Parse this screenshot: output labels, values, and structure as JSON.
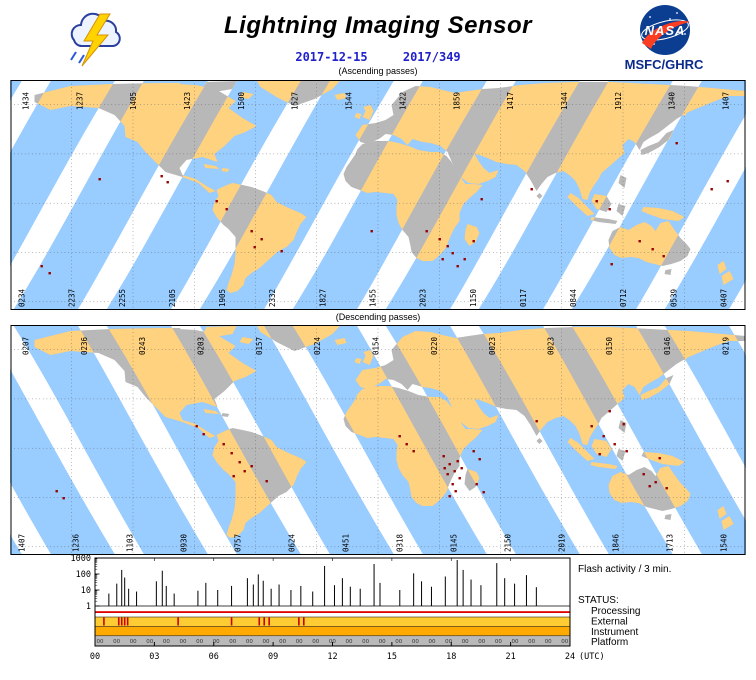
{
  "header": {
    "title": "Lightning Imaging Sensor",
    "date": "2017-12-15",
    "day_of_year": "2017/349",
    "org": "MSFC/GHRC",
    "nasa_wordmark": "NASA"
  },
  "colors": {
    "swath_sea": "#99ccff",
    "swath_land": "#ffd280",
    "land": "#b8b8b8",
    "flash": "#990000",
    "accent_blue": "#2020cc",
    "status_processing": "#dd0000",
    "status_external": "#ffcc33",
    "status_instrument": "#ffaa00",
    "status_platform": "#b9b9b9"
  },
  "maps": {
    "ascending": {
      "label": "(Ascending passes)",
      "top_times": [
        "1434",
        "1237",
        "1405",
        "1423",
        "1500",
        "1527",
        "1544",
        "1422",
        "1859",
        "1417",
        "1344",
        "1912",
        "1340",
        "1407"
      ],
      "bottom_times": [
        "0234",
        "2237",
        "2255",
        "2105",
        "1905",
        "2332",
        "1827",
        "1455",
        "2023",
        "1150",
        "0117",
        "0844",
        "0712",
        "0539",
        "0407"
      ],
      "flash_points": [
        [
          30,
          185
        ],
        [
          38,
          192
        ],
        [
          88,
          98
        ],
        [
          150,
          95
        ],
        [
          156,
          101
        ],
        [
          205,
          120
        ],
        [
          215,
          128
        ],
        [
          240,
          150
        ],
        [
          250,
          158
        ],
        [
          243,
          166
        ],
        [
          270,
          170
        ],
        [
          360,
          150
        ],
        [
          415,
          150
        ],
        [
          428,
          158
        ],
        [
          436,
          165
        ],
        [
          441,
          172
        ],
        [
          431,
          178
        ],
        [
          446,
          185
        ],
        [
          453,
          178
        ],
        [
          462,
          160
        ],
        [
          470,
          118
        ],
        [
          520,
          108
        ],
        [
          585,
          120
        ],
        [
          598,
          128
        ],
        [
          628,
          160
        ],
        [
          641,
          168
        ],
        [
          652,
          175
        ],
        [
          665,
          62
        ],
        [
          700,
          108
        ],
        [
          716,
          100
        ],
        [
          600,
          183
        ]
      ]
    },
    "descending": {
      "label": "(Descending passes)",
      "top_times": [
        "0207",
        "0236",
        "0243",
        "0203",
        "0157",
        "0224",
        "0154",
        "0220",
        "0023",
        "0023",
        "0150",
        "0146",
        "0219"
      ],
      "bottom_times": [
        "1407",
        "1236",
        "1103",
        "0930",
        "0757",
        "0624",
        "0451",
        "0318",
        "0145",
        "2150",
        "2019",
        "1846",
        "1713",
        "1540"
      ],
      "flash_points": [
        [
          45,
          165
        ],
        [
          52,
          172
        ],
        [
          185,
          100
        ],
        [
          192,
          108
        ],
        [
          212,
          118
        ],
        [
          220,
          127
        ],
        [
          228,
          136
        ],
        [
          233,
          145
        ],
        [
          222,
          150
        ],
        [
          240,
          140
        ],
        [
          255,
          155
        ],
        [
          388,
          110
        ],
        [
          395,
          118
        ],
        [
          402,
          125
        ],
        [
          432,
          130
        ],
        [
          438,
          138
        ],
        [
          443,
          145
        ],
        [
          448,
          152
        ],
        [
          436,
          148
        ],
        [
          441,
          158
        ],
        [
          446,
          135
        ],
        [
          433,
          142
        ],
        [
          450,
          142
        ],
        [
          444,
          165
        ],
        [
          438,
          170
        ],
        [
          462,
          125
        ],
        [
          468,
          133
        ],
        [
          465,
          158
        ],
        [
          472,
          166
        ],
        [
          525,
          95
        ],
        [
          580,
          100
        ],
        [
          592,
          110
        ],
        [
          603,
          118
        ],
        [
          615,
          125
        ],
        [
          588,
          128
        ],
        [
          612,
          98
        ],
        [
          598,
          85
        ],
        [
          632,
          148
        ],
        [
          644,
          156
        ],
        [
          655,
          162
        ],
        [
          638,
          160
        ],
        [
          648,
          132
        ]
      ]
    }
  },
  "activity_panel": {
    "note": "Flash activity / 3 min.",
    "status_title": "STATUS:",
    "status_rows": [
      "Processing",
      "External",
      "Instrument",
      "Platform"
    ],
    "y_ticks": [
      "1000",
      "100",
      "10",
      "1"
    ],
    "x_ticks": [
      "00",
      "03",
      "06",
      "09",
      "12",
      "15",
      "18",
      "21",
      "24"
    ],
    "x_unit": "(UTC)",
    "platform_mark": "00",
    "external_marks_utc": [
      0.45,
      1.2,
      1.35,
      1.5,
      1.65,
      4.2,
      6.9,
      8.3,
      8.55,
      8.8,
      10.3,
      10.55
    ]
  },
  "chart_data": {
    "type": "bar",
    "title": "Flash activity / 3 min.",
    "xlabel": "(UTC)",
    "ylabel": "",
    "x_range_hours": [
      0,
      24
    ],
    "x_tick_labels": [
      "00",
      "03",
      "06",
      "09",
      "12",
      "15",
      "18",
      "21",
      "24"
    ],
    "y_scale": "log",
    "ylim": [
      1,
      1000
    ],
    "spikes_t_hours_value": [
      [
        0.7,
        6
      ],
      [
        1.1,
        25
      ],
      [
        1.35,
        180
      ],
      [
        1.5,
        60
      ],
      [
        1.7,
        12
      ],
      [
        2.1,
        8
      ],
      [
        3.1,
        35
      ],
      [
        3.4,
        160
      ],
      [
        3.6,
        18
      ],
      [
        4.0,
        6
      ],
      [
        5.2,
        9
      ],
      [
        5.6,
        28
      ],
      [
        6.2,
        10
      ],
      [
        6.9,
        18
      ],
      [
        7.7,
        55
      ],
      [
        8.0,
        22
      ],
      [
        8.25,
        95
      ],
      [
        8.5,
        38
      ],
      [
        8.9,
        12
      ],
      [
        9.3,
        22
      ],
      [
        9.9,
        10
      ],
      [
        10.4,
        18
      ],
      [
        11.0,
        8
      ],
      [
        11.6,
        320
      ],
      [
        12.1,
        20
      ],
      [
        12.5,
        55
      ],
      [
        12.9,
        16
      ],
      [
        13.4,
        12
      ],
      [
        14.1,
        420
      ],
      [
        14.4,
        28
      ],
      [
        15.4,
        10
      ],
      [
        16.1,
        110
      ],
      [
        16.5,
        35
      ],
      [
        17.0,
        16
      ],
      [
        17.7,
        70
      ],
      [
        18.3,
        750
      ],
      [
        18.6,
        180
      ],
      [
        19.0,
        45
      ],
      [
        19.5,
        20
      ],
      [
        20.3,
        480
      ],
      [
        20.7,
        55
      ],
      [
        21.2,
        25
      ],
      [
        21.8,
        85
      ],
      [
        22.3,
        15
      ]
    ]
  }
}
